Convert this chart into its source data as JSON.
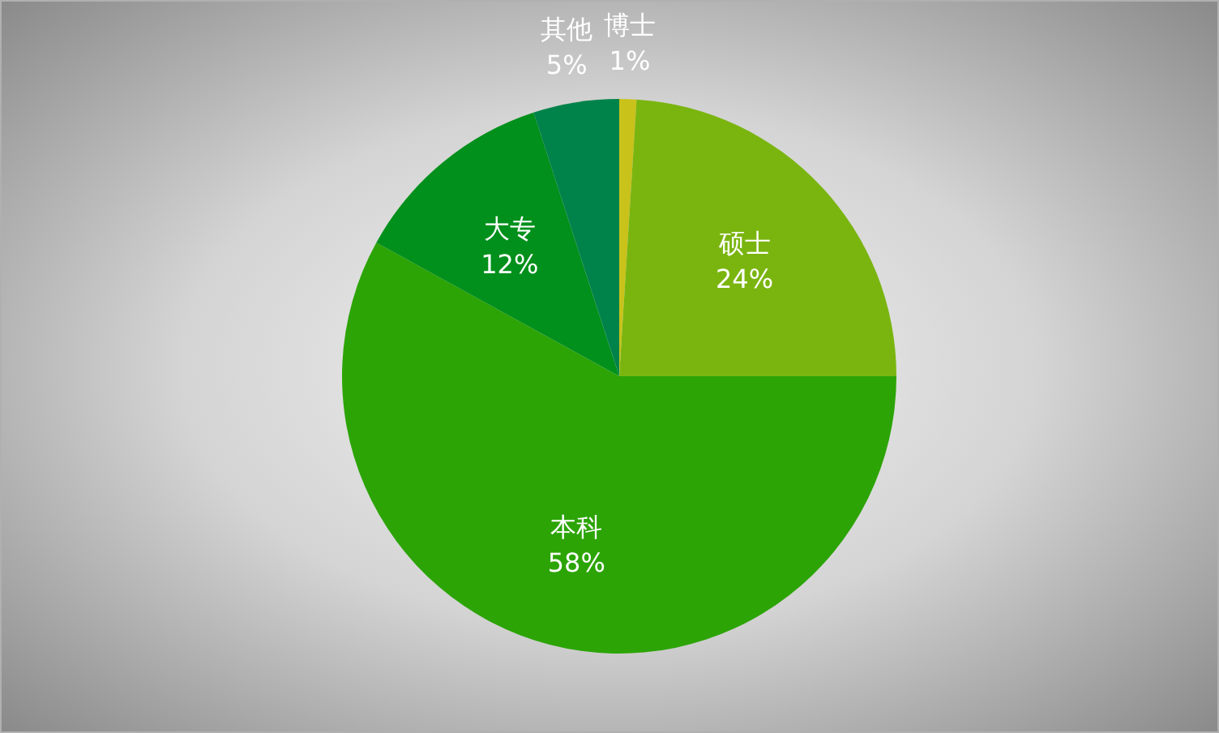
{
  "chart_data": {
    "type": "pie",
    "categories": [
      "博士",
      "硕士",
      "本科",
      "大专",
      "其他"
    ],
    "values": [
      1,
      24,
      58,
      12,
      5
    ],
    "value_labels": [
      "1%",
      "24%",
      "58%",
      "12%",
      "5%"
    ],
    "colors": [
      "#c9c21a",
      "#7ab50f",
      "#2ca406",
      "#00901b",
      "#00834a"
    ]
  }
}
